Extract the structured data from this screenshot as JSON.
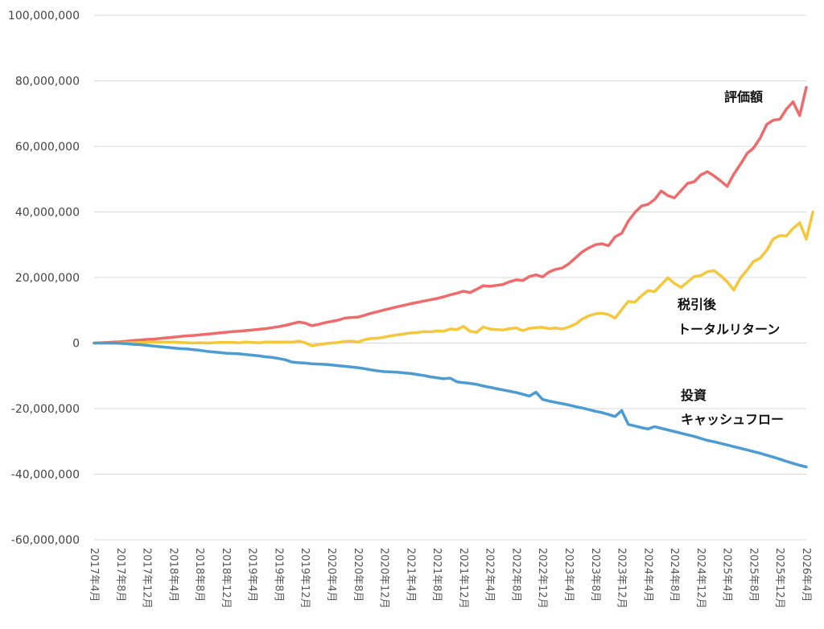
{
  "chart_data": {
    "type": "line",
    "ylim": [
      -60000000,
      100000000
    ],
    "y_ticks": [
      100000000,
      80000000,
      60000000,
      40000000,
      20000000,
      0,
      -20000000,
      -40000000,
      -60000000
    ],
    "y_tick_labels": [
      "100,000,000",
      "80,000,000",
      "60,000,000",
      "40,000,000",
      "20,000,000",
      "0",
      "-20,000,000",
      "-40,000,000",
      "-60,000,000"
    ],
    "x_tick_labels": [
      "2017年4月",
      "2017年8月",
      "2017年12月",
      "2018年4月",
      "2018年8月",
      "2018年12月",
      "2019年4月",
      "2019年8月",
      "2019年12月",
      "2020年4月",
      "2020年8月",
      "2020年12月",
      "2021年4月",
      "2021年8月",
      "2021年12月",
      "2022年4月",
      "2022年8月",
      "2022年12月",
      "2023年4月",
      "2023年8月",
      "2023年12月",
      "2024年4月",
      "2024年8月",
      "2024年12月",
      "2025年4月",
      "2025年8月",
      "2025年12月",
      "2026年4月"
    ],
    "grid": "horizontal",
    "series": [
      {
        "name": "評価額",
        "color": "#ef6b6b",
        "values": [
          0,
          100000,
          200000,
          300000,
          400000,
          600000,
          800000,
          900000,
          1100000,
          1200000,
          1400000,
          1600000,
          1800000,
          2000000,
          2200000,
          2300000,
          2500000,
          2700000,
          2900000,
          3100000,
          3300000,
          3500000,
          3600000,
          3800000,
          4000000,
          4200000,
          4400000,
          4700000,
          5000000,
          5400000,
          5900000,
          6400000,
          6100000,
          5300000,
          5700000,
          6200000,
          6600000,
          7000000,
          7600000,
          7800000,
          7900000,
          8500000,
          9100000,
          9600000,
          10100000,
          10600000,
          11100000,
          11500000,
          12000000,
          12400000,
          12800000,
          13200000,
          13600000,
          14100000,
          14700000,
          15200000,
          15800000,
          15400000,
          16400000,
          17500000,
          17300000,
          17600000,
          17900000,
          18700000,
          19300000,
          19100000,
          20300000,
          20800000,
          20200000,
          21700000,
          22500000,
          22900000,
          24200000,
          26000000,
          27800000,
          29000000,
          30000000,
          30300000,
          29700000,
          32400000,
          33500000,
          37200000,
          39800000,
          41800000,
          42300000,
          43800000,
          46400000,
          45000000,
          44300000,
          46500000,
          48700000,
          49200000,
          51300000,
          52300000,
          51000000,
          49500000,
          47800000,
          51500000,
          54500000,
          57800000,
          59500000,
          62500000,
          66700000,
          68000000,
          68300000,
          71400000,
          73600000,
          69400000,
          78000000
        ]
      },
      {
        "name": "税引後トータルリターン",
        "color": "#f5c73c",
        "values": [
          0,
          0,
          0,
          0,
          0,
          100000,
          100000,
          200000,
          200000,
          300000,
          300000,
          300000,
          300000,
          200000,
          100000,
          0,
          100000,
          0,
          100000,
          200000,
          200000,
          200000,
          100000,
          300000,
          200000,
          100000,
          300000,
          300000,
          300000,
          300000,
          300000,
          600000,
          100000,
          -800000,
          -500000,
          -200000,
          0,
          200000,
          500000,
          600000,
          300000,
          1000000,
          1400000,
          1500000,
          1800000,
          2200000,
          2500000,
          2800000,
          3100000,
          3200000,
          3500000,
          3400000,
          3700000,
          3600000,
          4300000,
          4100000,
          5100000,
          3600000,
          3300000,
          4900000,
          4300000,
          4100000,
          4000000,
          4400000,
          4600000,
          3800000,
          4500000,
          4700000,
          4800000,
          4400000,
          4600000,
          4300000,
          4900000,
          5800000,
          7300000,
          8300000,
          8900000,
          9100000,
          8700000,
          7600000,
          10200000,
          12700000,
          12500000,
          14400000,
          16000000,
          15700000,
          17800000,
          19900000,
          18200000,
          17000000,
          18600000,
          20300000,
          20600000,
          21800000,
          22100000,
          20600000,
          18700000,
          16200000,
          19800000,
          22200000,
          24900000,
          25900000,
          28300000,
          31800000,
          32800000,
          32700000,
          35000000,
          36700000,
          31700000,
          40000000
        ]
      },
      {
        "name": "投資キャッシュフロー",
        "color": "#4d9bd3",
        "values": [
          0,
          0,
          0,
          0,
          -100000,
          -200000,
          -400000,
          -500000,
          -700000,
          -900000,
          -1100000,
          -1300000,
          -1500000,
          -1700000,
          -1800000,
          -2000000,
          -2200000,
          -2500000,
          -2700000,
          -2900000,
          -3100000,
          -3200000,
          -3300000,
          -3500000,
          -3700000,
          -3900000,
          -4200000,
          -4400000,
          -4700000,
          -5100000,
          -5800000,
          -6000000,
          -6100000,
          -6300000,
          -6400000,
          -6500000,
          -6700000,
          -6900000,
          -7100000,
          -7300000,
          -7500000,
          -7800000,
          -8200000,
          -8500000,
          -8700000,
          -8800000,
          -8900000,
          -9100000,
          -9300000,
          -9600000,
          -9900000,
          -10300000,
          -10600000,
          -10900000,
          -10700000,
          -11800000,
          -12100000,
          -12300000,
          -12600000,
          -13100000,
          -13500000,
          -13900000,
          -14300000,
          -14700000,
          -15100000,
          -15600000,
          -16200000,
          -15000000,
          -17200000,
          -17700000,
          -18100000,
          -18500000,
          -18900000,
          -19400000,
          -19800000,
          -20300000,
          -20800000,
          -21200000,
          -21800000,
          -22400000,
          -20600000,
          -24800000,
          -25300000,
          -25800000,
          -26200000,
          -25500000,
          -26000000,
          -26500000,
          -27000000,
          -27500000,
          -28000000,
          -28500000,
          -29100000,
          -29700000,
          -30100000,
          -30600000,
          -31100000,
          -31600000,
          -32100000,
          -32600000,
          -33100000,
          -33600000,
          -34200000,
          -34800000,
          -35400000,
          -36100000,
          -36700000,
          -37300000,
          -37800000
        ]
      }
    ]
  },
  "labels": {
    "valuation": "評価額",
    "return_line1": "税引後",
    "return_line2": "トータルリターン",
    "cashflow_line1": "投資",
    "cashflow_line2": "キャッシュフロー"
  }
}
